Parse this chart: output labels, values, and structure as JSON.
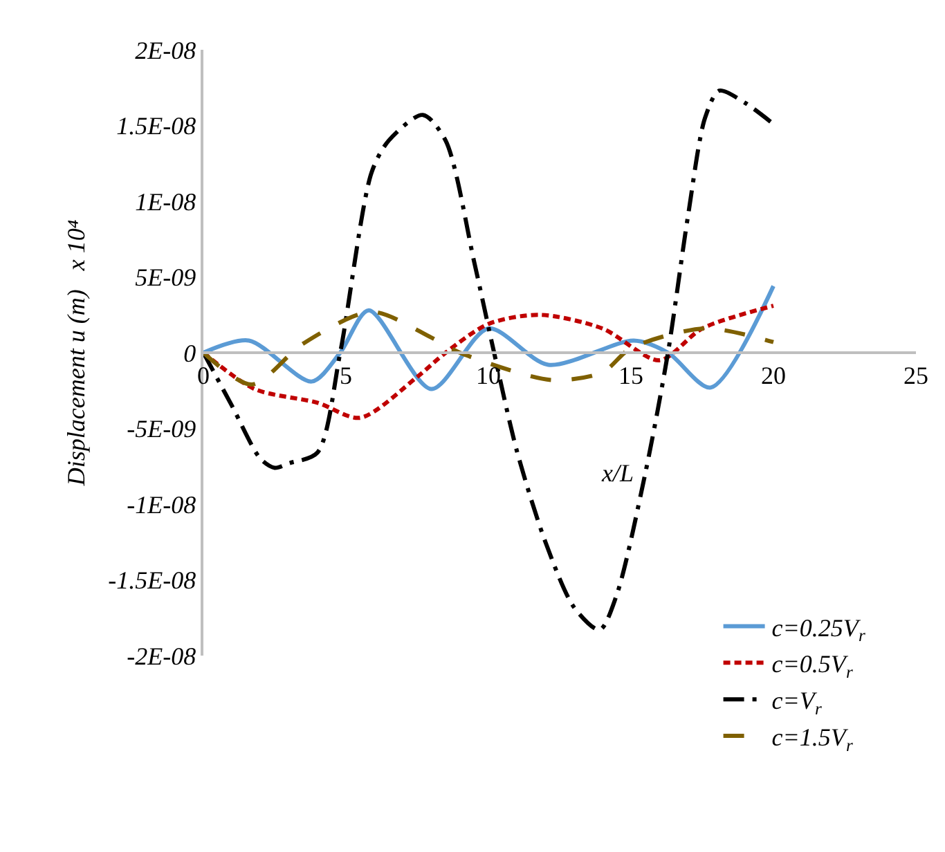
{
  "chart_data": {
    "type": "line",
    "xlabel": "x/L",
    "ylabel": "Displacement u (m)   x 10⁴",
    "xlim": [
      0,
      25
    ],
    "xticks": [
      0,
      5,
      10,
      15,
      20,
      25
    ],
    "ylim": [
      -2e-08,
      2e-08
    ],
    "yticks": [
      {
        "value": -2e-08,
        "label": "-2E-08"
      },
      {
        "value": -1.5e-08,
        "label": "-1.5E-08"
      },
      {
        "value": -1e-08,
        "label": "-1E-08"
      },
      {
        "value": -5e-09,
        "label": "-5E-09"
      },
      {
        "value": 0,
        "label": "0"
      },
      {
        "value": 5e-09,
        "label": "5E-09"
      },
      {
        "value": 1e-08,
        "label": "1E-08"
      },
      {
        "value": 1.5e-08,
        "label": "1.5E-08"
      },
      {
        "value": 2e-08,
        "label": "2E-08"
      }
    ],
    "legend": "bottom right",
    "marker": "none",
    "series": [
      {
        "name": "c=0.25V$_{r}$",
        "color": "#5b9bd5",
        "line_style": "solid",
        "x": [
          0,
          1.6,
          3.8,
          4.8,
          5.8,
          8.0,
          10.0,
          12.1,
          15.1,
          16.3,
          17.8,
          20
        ],
        "values": [
          0,
          8e-10,
          -1.9e-09,
          0,
          2.8e-09,
          -2.4e-09,
          1.6e-09,
          -8e-10,
          8e-10,
          0,
          -2.3e-09,
          4.4e-09
        ]
      },
      {
        "name": "c=0.5V$_{r}$",
        "color": "#c00000",
        "line_style": "dotted",
        "x": [
          0,
          1.8,
          4.0,
          5.5,
          7.5,
          8.5,
          10.0,
          11.8,
          14.0,
          16.0,
          17.5,
          20
        ],
        "values": [
          0,
          -2.4e-09,
          -3.3e-09,
          -4.3e-09,
          -1.6e-09,
          0,
          1.9e-09,
          2.5e-09,
          1.6e-09,
          -5e-10,
          1.6e-09,
          3.1e-09
        ]
      },
      {
        "name": "c=V$_{r}$",
        "color": "#000000",
        "line_style": "dashdot",
        "x": [
          0,
          1,
          2,
          2.5,
          3,
          4,
          4.8,
          5.9,
          6.5,
          7.7,
          8.5,
          9.5,
          10.2,
          11,
          12,
          13,
          13.9,
          14.5,
          15.5,
          16.3,
          17,
          17.6,
          18.1,
          19,
          20
        ],
        "values": [
          0,
          -3.5e-09,
          -7e-09,
          -7.6e-09,
          -7.3e-09,
          -6.6e-09,
          0,
          1.19e-08,
          1.4e-08,
          1.57e-08,
          1.4e-08,
          6e-09,
          0,
          -6.5e-09,
          -1.25e-08,
          -1.68e-08,
          -1.83e-08,
          -1.6e-08,
          -8e-09,
          0,
          9e-09,
          1.55e-08,
          1.73e-08,
          1.65e-08,
          1.51e-08
        ]
      },
      {
        "name": "c=1.5V$_{r}$",
        "color": "#7f6000",
        "line_style": "dashed",
        "x": [
          0,
          1.7,
          3.5,
          5.9,
          8.0,
          9.0,
          12.2,
          14.0,
          15.0,
          17.6,
          20
        ],
        "values": [
          0,
          -2.1e-09,
          6e-10,
          2.7e-09,
          1e-09,
          0,
          -1.8e-09,
          -1.3e-09,
          3e-10,
          1.6e-09,
          7e-10
        ]
      }
    ]
  }
}
